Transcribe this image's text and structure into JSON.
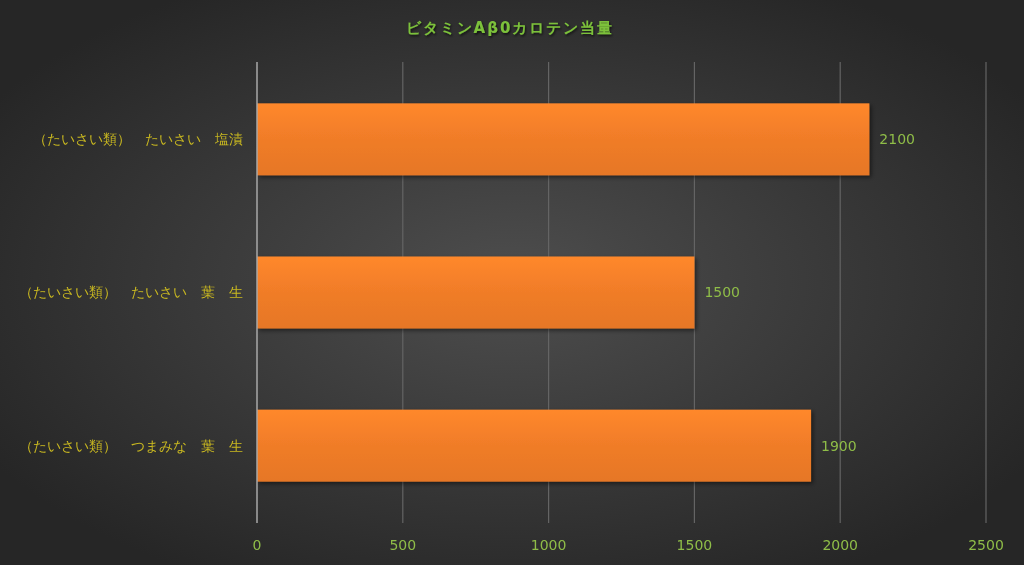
{
  "chart_data": {
    "type": "bar",
    "orientation": "horizontal",
    "title": "ビタミンAβ0カロテン当量",
    "categories": [
      "（たいさい類）　たいさい　塩漬",
      "（たいさい類）　たいさい　葉　生",
      "（たいさい類）　つまみな　葉　生"
    ],
    "values": [
      2100,
      1500,
      1900
    ],
    "color": "#f07c28",
    "xlim": [
      0,
      2500
    ],
    "xticks": [
      0,
      500,
      1000,
      1500,
      2000,
      2500
    ],
    "grid": "x",
    "data_labels": true
  }
}
